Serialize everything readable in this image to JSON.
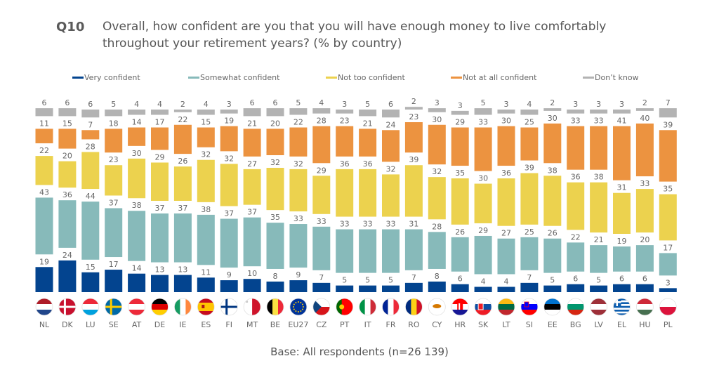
{
  "header": {
    "question_number": "Q10",
    "question_text": "Overall, how confident are you that you will have enough money to live comfortably throughout your retirement years? (% by country)"
  },
  "footer": {
    "base": "Base: All respondents (n=26 139)"
  },
  "chart_data": {
    "type": "bar",
    "subtype": "segmented-stacked",
    "title": "Overall, how confident are you that you will have enough money to live comfortably throughout your retirement years? (% by country)",
    "xlabel": "",
    "ylabel": "%",
    "legend_position": "top",
    "grid": false,
    "categories": [
      "NL",
      "DK",
      "LU",
      "SE",
      "AT",
      "DE",
      "IE",
      "ES",
      "FI",
      "MT",
      "BE",
      "EU27",
      "CZ",
      "PT",
      "IT",
      "FR",
      "RO",
      "CY",
      "HR",
      "SK",
      "LT",
      "SI",
      "EE",
      "BG",
      "LV",
      "EL",
      "HU",
      "PL"
    ],
    "series": [
      {
        "name": "Very confident",
        "color": "#03448f",
        "values": [
          19,
          24,
          15,
          17,
          14,
          13,
          13,
          11,
          9,
          10,
          8,
          9,
          7,
          5,
          5,
          5,
          7,
          8,
          6,
          4,
          4,
          7,
          5,
          6,
          5,
          6,
          6,
          3
        ]
      },
      {
        "name": "Somewhat confident",
        "color": "#87baba",
        "values": [
          43,
          36,
          44,
          37,
          38,
          37,
          37,
          38,
          37,
          37,
          35,
          33,
          33,
          33,
          33,
          33,
          31,
          28,
          26,
          29,
          27,
          25,
          26,
          22,
          21,
          19,
          20,
          17
        ]
      },
      {
        "name": "Not too confident",
        "color": "#ecd24e",
        "values": [
          22,
          20,
          28,
          23,
          30,
          29,
          26,
          32,
          32,
          27,
          32,
          32,
          29,
          36,
          36,
          32,
          39,
          32,
          35,
          30,
          36,
          39,
          38,
          36,
          38,
          31,
          33,
          35
        ]
      },
      {
        "name": "Not at all confident",
        "color": "#ec9340",
        "values": [
          11,
          15,
          7,
          18,
          14,
          17,
          22,
          15,
          19,
          21,
          20,
          22,
          28,
          23,
          21,
          24,
          23,
          30,
          29,
          33,
          30,
          25,
          30,
          33,
          33,
          41,
          40,
          39
        ]
      },
      {
        "name": "Don’t know",
        "color": "#b3b3b3",
        "values": [
          6,
          6,
          6,
          5,
          4,
          4,
          2,
          4,
          3,
          6,
          6,
          5,
          4,
          3,
          5,
          6,
          2,
          3,
          3,
          5,
          3,
          4,
          2,
          3,
          3,
          3,
          2,
          7
        ]
      }
    ],
    "flags": [
      "NL",
      "DK",
      "LU",
      "SE",
      "AT",
      "DE",
      "IE",
      "ES",
      "FI",
      "MT",
      "BE",
      "EU27",
      "CZ",
      "PT",
      "IT",
      "FR",
      "RO",
      "CY",
      "HR",
      "SK",
      "LT",
      "SI",
      "EE",
      "BG",
      "LV",
      "EL",
      "HU",
      "PL"
    ]
  }
}
